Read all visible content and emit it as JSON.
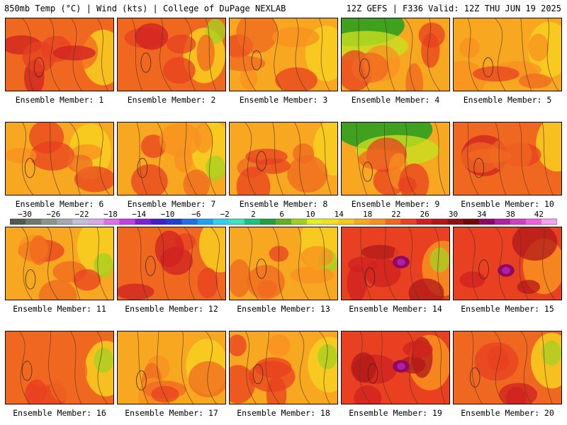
{
  "header": {
    "title": "850mb Temp (°C) | Wind (kts) | College of DuPage NEXLAB",
    "run_info": "12Z GEFS | F336 Valid: 12Z THU JUN 19 2025"
  },
  "legend": {
    "ticks": [
      "−30",
      "−26",
      "−22",
      "−18",
      "−14",
      "−10",
      "−6",
      "−2",
      "2",
      "6",
      "10",
      "14",
      "18",
      "22",
      "26",
      "30",
      "34",
      "38",
      "42"
    ],
    "colors": [
      "#505a50",
      "#6e786e",
      "#8c948c",
      "#a4a8b0",
      "#c0c0d8",
      "#d8a8e8",
      "#e070e8",
      "#c040e0",
      "#8020d0",
      "#4020c0",
      "#2040d0",
      "#2070e8",
      "#20a0f0",
      "#30d0f0",
      "#40e0c0",
      "#20c080",
      "#20a040",
      "#60b020",
      "#a0d020",
      "#e0f020",
      "#f0e020",
      "#f8c820",
      "#f8a820",
      "#f89020",
      "#f06820",
      "#e84020",
      "#d02020",
      "#b01818",
      "#901010",
      "#700808",
      "#900860",
      "#b020a0",
      "#d040c0",
      "#f060e0",
      "#f8a0f0"
    ]
  },
  "members": [
    {
      "label": "Ensemble Member: 1"
    },
    {
      "label": "Ensemble Member: 2"
    },
    {
      "label": "Ensemble Member: 3"
    },
    {
      "label": "Ensemble Member: 4"
    },
    {
      "label": "Ensemble Member: 5"
    },
    {
      "label": "Ensemble Member: 6"
    },
    {
      "label": "Ensemble Member: 7"
    },
    {
      "label": "Ensemble Member: 8"
    },
    {
      "label": "Ensemble Member: 9"
    },
    {
      "label": "Ensemble Member: 10"
    },
    {
      "label": "Ensemble Member: 11"
    },
    {
      "label": "Ensemble Member: 12"
    },
    {
      "label": "Ensemble Member: 13"
    },
    {
      "label": "Ensemble Member: 14"
    },
    {
      "label": "Ensemble Member: 15"
    },
    {
      "label": "Ensemble Member: 16"
    },
    {
      "label": "Ensemble Member: 17"
    },
    {
      "label": "Ensemble Member: 18"
    },
    {
      "label": "Ensemble Member: 19"
    },
    {
      "label": "Ensemble Member: 20"
    }
  ]
}
